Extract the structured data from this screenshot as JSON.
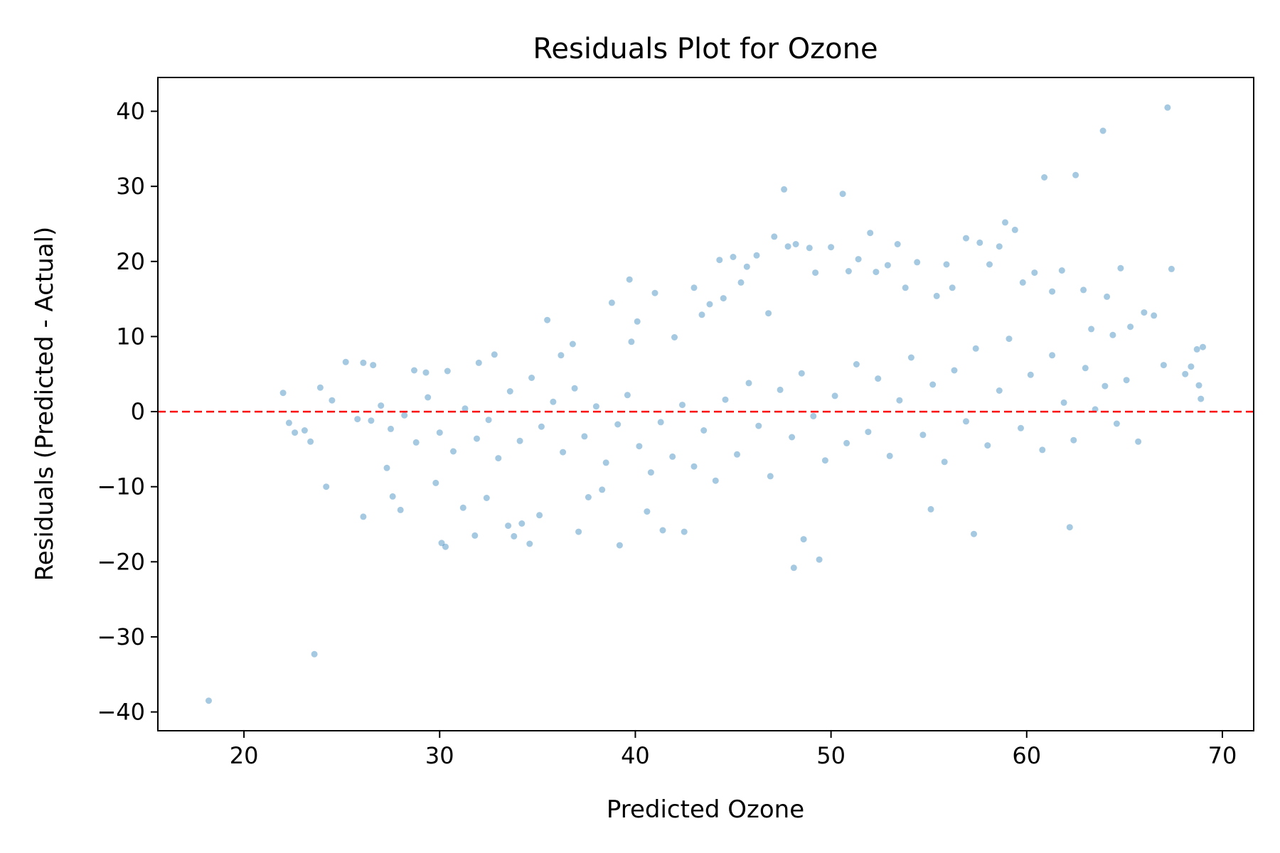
{
  "chart_data": {
    "type": "scatter",
    "title": "Residuals Plot for Ozone",
    "xlabel": "Predicted Ozone",
    "ylabel": "Residuals (Predicted - Actual)",
    "xlim": [
      15.6,
      71.6
    ],
    "ylim": [
      -42.5,
      44.5
    ],
    "xticks": [
      20,
      30,
      40,
      50,
      60,
      70
    ],
    "xtick_labels": [
      "20",
      "30",
      "40",
      "50",
      "60",
      "70"
    ],
    "yticks": [
      -40,
      -30,
      -20,
      -10,
      0,
      10,
      20,
      30,
      40
    ],
    "ytick_labels": [
      "−40",
      "−30",
      "−20",
      "−10",
      "0",
      "10",
      "20",
      "30",
      "40"
    ],
    "grid": false,
    "point_color": "#1f77b4",
    "point_alpha": 0.4,
    "reference_line": {
      "y": 0,
      "color": "#ff0000",
      "style": "dashed"
    },
    "series": [
      {
        "points": [
          [
            18.2,
            -38.5
          ],
          [
            23.6,
            -32.3
          ],
          [
            22.0,
            2.5
          ],
          [
            22.3,
            -1.5
          ],
          [
            22.6,
            -2.8
          ],
          [
            23.1,
            -2.5
          ],
          [
            23.4,
            -4.0
          ],
          [
            23.9,
            3.2
          ],
          [
            24.2,
            -10.0
          ],
          [
            24.5,
            1.5
          ],
          [
            25.2,
            6.6
          ],
          [
            25.8,
            -1.0
          ],
          [
            26.1,
            -14.0
          ],
          [
            26.1,
            6.5
          ],
          [
            26.6,
            6.2
          ],
          [
            27.3,
            -7.5
          ],
          [
            27.6,
            -11.3
          ],
          [
            28.0,
            -13.1
          ],
          [
            28.7,
            5.5
          ],
          [
            29.3,
            5.2
          ],
          [
            29.8,
            -9.5
          ],
          [
            30.1,
            -17.5
          ],
          [
            30.3,
            -18.0
          ],
          [
            30.4,
            5.4
          ],
          [
            31.2,
            -12.8
          ],
          [
            31.8,
            -16.5
          ],
          [
            32.0,
            6.5
          ],
          [
            32.4,
            -11.5
          ],
          [
            32.8,
            7.6
          ],
          [
            33.5,
            -15.2
          ],
          [
            33.8,
            -16.6
          ],
          [
            34.2,
            -14.9
          ],
          [
            34.6,
            -17.6
          ],
          [
            35.1,
            -13.8
          ],
          [
            35.5,
            12.2
          ],
          [
            36.2,
            7.5
          ],
          [
            36.8,
            9.0
          ],
          [
            37.1,
            -16.0
          ],
          [
            37.6,
            -11.4
          ],
          [
            38.3,
            -10.4
          ],
          [
            38.8,
            14.5
          ],
          [
            39.2,
            -17.8
          ],
          [
            39.7,
            17.6
          ],
          [
            39.8,
            9.3
          ],
          [
            40.1,
            12.0
          ],
          [
            40.6,
            -13.3
          ],
          [
            41.0,
            15.8
          ],
          [
            41.4,
            -15.8
          ],
          [
            42.0,
            9.9
          ],
          [
            42.5,
            -16.0
          ],
          [
            43.0,
            16.5
          ],
          [
            43.4,
            12.9
          ],
          [
            43.8,
            14.3
          ],
          [
            44.3,
            20.2
          ],
          [
            44.5,
            15.1
          ],
          [
            45.0,
            20.6
          ],
          [
            45.4,
            17.2
          ],
          [
            45.7,
            19.3
          ],
          [
            46.2,
            20.8
          ],
          [
            46.8,
            13.1
          ],
          [
            47.1,
            23.3
          ],
          [
            47.6,
            29.6
          ],
          [
            47.8,
            22.0
          ],
          [
            48.1,
            -20.8
          ],
          [
            48.2,
            22.3
          ],
          [
            48.6,
            -17.0
          ],
          [
            48.9,
            21.8
          ],
          [
            49.2,
            18.5
          ],
          [
            49.4,
            -19.7
          ],
          [
            50.0,
            21.9
          ],
          [
            50.6,
            29.0
          ],
          [
            50.9,
            18.7
          ],
          [
            51.4,
            20.3
          ],
          [
            52.0,
            23.8
          ],
          [
            52.3,
            18.6
          ],
          [
            52.9,
            19.5
          ],
          [
            53.4,
            22.3
          ],
          [
            53.8,
            16.5
          ],
          [
            54.4,
            19.9
          ],
          [
            55.1,
            -13.0
          ],
          [
            55.4,
            15.4
          ],
          [
            55.9,
            19.6
          ],
          [
            56.2,
            16.5
          ],
          [
            56.9,
            23.1
          ],
          [
            57.3,
            -16.3
          ],
          [
            57.6,
            22.5
          ],
          [
            58.1,
            19.6
          ],
          [
            58.6,
            22.0
          ],
          [
            58.9,
            25.2
          ],
          [
            59.4,
            24.2
          ],
          [
            59.8,
            17.2
          ],
          [
            60.4,
            18.5
          ],
          [
            60.9,
            31.2
          ],
          [
            61.3,
            16.0
          ],
          [
            61.8,
            18.8
          ],
          [
            62.2,
            -15.4
          ],
          [
            62.5,
            31.5
          ],
          [
            62.9,
            16.2
          ],
          [
            63.3,
            11.0
          ],
          [
            63.9,
            37.4
          ],
          [
            64.1,
            15.3
          ],
          [
            64.4,
            10.2
          ],
          [
            64.8,
            19.1
          ],
          [
            65.3,
            11.3
          ],
          [
            65.7,
            -4.0
          ],
          [
            66.0,
            13.2
          ],
          [
            66.5,
            12.8
          ],
          [
            67.0,
            6.2
          ],
          [
            67.2,
            40.5
          ],
          [
            67.4,
            19.0
          ],
          [
            68.1,
            5.0
          ],
          [
            68.4,
            6.0
          ],
          [
            68.8,
            3.5
          ],
          [
            69.0,
            8.6
          ],
          [
            68.9,
            1.7
          ],
          [
            68.7,
            8.3
          ],
          [
            26.5,
            -1.2
          ],
          [
            27.0,
            0.8
          ],
          [
            27.5,
            -2.3
          ],
          [
            28.2,
            -0.5
          ],
          [
            28.8,
            -4.1
          ],
          [
            29.4,
            1.9
          ],
          [
            30.0,
            -2.8
          ],
          [
            30.7,
            -5.3
          ],
          [
            31.3,
            0.4
          ],
          [
            31.9,
            -3.6
          ],
          [
            32.5,
            -1.1
          ],
          [
            33.0,
            -6.2
          ],
          [
            33.6,
            2.7
          ],
          [
            34.1,
            -3.9
          ],
          [
            34.7,
            4.5
          ],
          [
            35.2,
            -2.0
          ],
          [
            35.8,
            1.3
          ],
          [
            36.3,
            -5.4
          ],
          [
            36.9,
            3.1
          ],
          [
            37.4,
            -3.3
          ],
          [
            38.0,
            0.7
          ],
          [
            38.5,
            -6.8
          ],
          [
            39.1,
            -1.7
          ],
          [
            39.6,
            2.2
          ],
          [
            40.2,
            -4.6
          ],
          [
            40.8,
            -8.1
          ],
          [
            41.3,
            -1.4
          ],
          [
            41.9,
            -6.0
          ],
          [
            42.4,
            0.9
          ],
          [
            43.0,
            -7.3
          ],
          [
            43.5,
            -2.5
          ],
          [
            44.1,
            -9.2
          ],
          [
            44.6,
            1.6
          ],
          [
            45.2,
            -5.7
          ],
          [
            45.8,
            3.8
          ],
          [
            46.3,
            -1.9
          ],
          [
            46.9,
            -8.6
          ],
          [
            47.4,
            2.9
          ],
          [
            48.0,
            -3.4
          ],
          [
            48.5,
            5.1
          ],
          [
            49.1,
            -0.6
          ],
          [
            49.7,
            -6.5
          ],
          [
            50.2,
            2.1
          ],
          [
            50.8,
            -4.2
          ],
          [
            51.3,
            6.3
          ],
          [
            51.9,
            -2.7
          ],
          [
            52.4,
            4.4
          ],
          [
            53.0,
            -5.9
          ],
          [
            53.5,
            1.5
          ],
          [
            54.1,
            7.2
          ],
          [
            54.7,
            -3.1
          ],
          [
            55.2,
            3.6
          ],
          [
            55.8,
            -6.7
          ],
          [
            56.3,
            5.5
          ],
          [
            56.9,
            -1.3
          ],
          [
            57.4,
            8.4
          ],
          [
            58.0,
            -4.5
          ],
          [
            58.6,
            2.8
          ],
          [
            59.1,
            9.7
          ],
          [
            59.7,
            -2.2
          ],
          [
            60.2,
            4.9
          ],
          [
            60.8,
            -5.1
          ],
          [
            61.3,
            7.5
          ],
          [
            61.9,
            1.2
          ],
          [
            62.4,
            -3.8
          ],
          [
            63.0,
            5.8
          ],
          [
            63.5,
            0.3
          ],
          [
            64.0,
            3.4
          ],
          [
            64.6,
            -1.6
          ],
          [
            65.1,
            4.2
          ]
        ]
      }
    ]
  }
}
